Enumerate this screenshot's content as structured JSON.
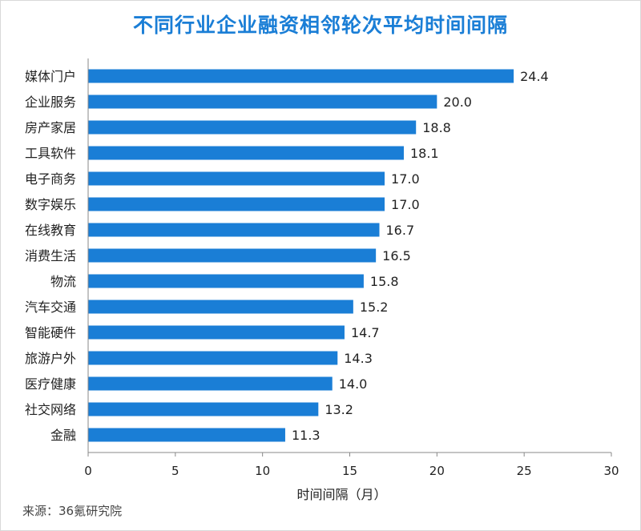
{
  "title": "不同行业企业融资相邻轮次平均时间间隔",
  "source": "来源：36氪研究院",
  "chart_data": {
    "type": "bar",
    "orientation": "horizontal",
    "categories": [
      "媒体门户",
      "企业服务",
      "房产家居",
      "工具软件",
      "电子商务",
      "数字娱乐",
      "在线教育",
      "消费生活",
      "物流",
      "汽车交通",
      "智能硬件",
      "旅游户外",
      "医疗健康",
      "社交网络",
      "金融"
    ],
    "values": [
      24.4,
      20.0,
      18.8,
      18.1,
      17.0,
      17.0,
      16.7,
      16.5,
      15.8,
      15.2,
      14.7,
      14.3,
      14.0,
      13.2,
      11.3
    ],
    "value_labels": [
      "24.4",
      "20.0",
      "18.8",
      "18.1",
      "17.0",
      "17.0",
      "16.7",
      "16.5",
      "15.8",
      "15.2",
      "14.7",
      "14.3",
      "14.0",
      "13.2",
      "11.3"
    ],
    "xlabel": "时间间隔（月）",
    "ylabel": "",
    "xlim": [
      0,
      30
    ],
    "xticks": [
      "0",
      "5",
      "10",
      "15",
      "20",
      "25",
      "30"
    ],
    "grid": false,
    "bar_color": "#1a7ed6"
  }
}
